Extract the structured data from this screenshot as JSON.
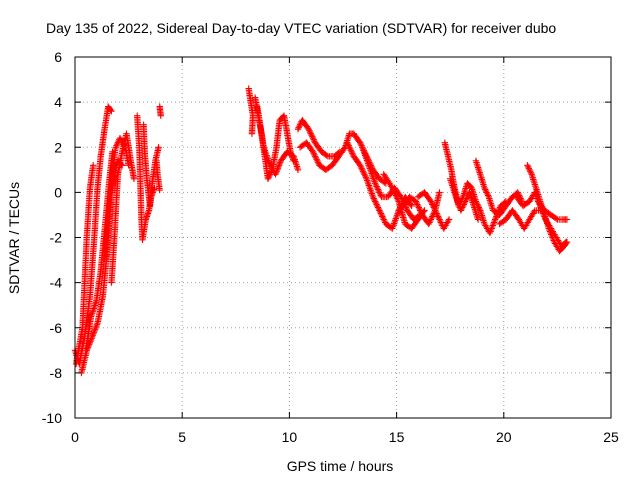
{
  "chart_data": {
    "type": "scatter",
    "title": "Day 135 of 2022, Sidereal Day-to-day VTEC variation (SDTVAR) for receiver dubo",
    "xlabel": "GPS time / hours",
    "ylabel": "SDTVAR / TECUs",
    "xlim": [
      0,
      25
    ],
    "ylim": [
      -10,
      6
    ],
    "xticks": [
      0,
      5,
      10,
      15,
      20,
      25
    ],
    "yticks": [
      -10,
      -8,
      -6,
      -4,
      -2,
      0,
      2,
      4,
      6
    ],
    "grid": true,
    "marker": "+",
    "series_color": "#ff0000",
    "tracks": [
      [
        [
          0.0,
          -7.0
        ],
        [
          0.2,
          -7.6
        ],
        [
          0.45,
          -6.4
        ],
        [
          0.7,
          -4.6
        ],
        [
          0.9,
          -2.0
        ],
        [
          1.05,
          0.2
        ],
        [
          1.2,
          1.6
        ],
        [
          1.38,
          2.8
        ],
        [
          1.55,
          3.8
        ],
        [
          1.7,
          3.6
        ]
      ],
      [
        [
          0.05,
          -7.6
        ],
        [
          0.35,
          -6.0
        ],
        [
          0.55,
          -2.0
        ],
        [
          0.7,
          0.2
        ],
        [
          0.85,
          1.2
        ]
      ],
      [
        [
          0.3,
          -8.0
        ],
        [
          0.55,
          -7.0
        ],
        [
          0.8,
          -6.4
        ],
        [
          1.05,
          -5.8
        ],
        [
          1.3,
          -4.6
        ],
        [
          1.5,
          -2.6
        ],
        [
          1.65,
          -0.6
        ],
        [
          1.8,
          0.6
        ],
        [
          2.0,
          1.4
        ],
        [
          2.2,
          1.2
        ]
      ],
      [
        [
          0.5,
          -7.0
        ],
        [
          0.75,
          -5.5
        ],
        [
          1.0,
          -4.8
        ],
        [
          1.2,
          -3.5
        ],
        [
          1.4,
          -1.5
        ],
        [
          1.6,
          0.5
        ],
        [
          1.75,
          1.8
        ]
      ],
      [
        [
          1.45,
          -3.0
        ],
        [
          1.6,
          -1.0
        ],
        [
          1.75,
          1.0
        ],
        [
          1.9,
          2.0
        ],
        [
          2.1,
          2.4
        ],
        [
          2.35,
          2.0
        ],
        [
          2.5,
          1.2
        ]
      ],
      [
        [
          1.7,
          -4.0
        ],
        [
          1.85,
          -1.8
        ],
        [
          2.0,
          0.8
        ],
        [
          2.2,
          1.8
        ],
        [
          2.4,
          2.6
        ],
        [
          2.6,
          1.4
        ],
        [
          2.75,
          0.6
        ]
      ],
      [
        [
          2.9,
          3.4
        ],
        [
          3.0,
          2.0
        ],
        [
          3.05,
          0.4
        ],
        [
          3.1,
          -1.2
        ],
        [
          3.15,
          -2.1
        ],
        [
          3.3,
          -1.2
        ],
        [
          3.45,
          -0.8
        ],
        [
          3.55,
          -0.2
        ],
        [
          3.7,
          0.2
        ]
      ],
      [
        [
          3.2,
          3.0
        ],
        [
          3.25,
          1.8
        ],
        [
          3.35,
          0.6
        ],
        [
          3.5,
          -0.6
        ],
        [
          3.6,
          0.4
        ],
        [
          3.75,
          1.4
        ],
        [
          3.9,
          2.0
        ]
      ],
      [
        [
          3.8,
          1.4
        ],
        [
          3.85,
          0.8
        ],
        [
          3.95,
          0.1
        ]
      ],
      [
        [
          3.95,
          3.8
        ],
        [
          4.0,
          3.4
        ]
      ],
      [
        [
          8.1,
          4.6
        ],
        [
          8.2,
          4.0
        ],
        [
          8.3,
          3.4
        ],
        [
          8.25,
          2.6
        ]
      ],
      [
        [
          8.4,
          4.2
        ],
        [
          8.55,
          3.4
        ],
        [
          8.7,
          2.6
        ],
        [
          8.85,
          1.6
        ],
        [
          9.0,
          0.6
        ],
        [
          9.2,
          1.0
        ],
        [
          9.4,
          2.0
        ],
        [
          9.55,
          3.2
        ],
        [
          9.75,
          3.4
        ],
        [
          9.9,
          2.6
        ],
        [
          10.05,
          1.8
        ],
        [
          10.2,
          1.4
        ]
      ],
      [
        [
          8.5,
          3.8
        ],
        [
          8.8,
          2.0
        ],
        [
          9.1,
          1.2
        ],
        [
          9.35,
          0.8
        ],
        [
          9.6,
          1.4
        ],
        [
          9.9,
          1.8
        ],
        [
          10.2,
          1.6
        ],
        [
          10.4,
          1.0
        ]
      ],
      [
        [
          10.4,
          2.8
        ],
        [
          10.6,
          3.2
        ],
        [
          10.9,
          2.8
        ],
        [
          11.2,
          2.2
        ],
        [
          11.5,
          1.8
        ],
        [
          11.8,
          1.6
        ],
        [
          12.1,
          1.6
        ],
        [
          12.35,
          1.8
        ]
      ],
      [
        [
          10.5,
          2.0
        ],
        [
          10.8,
          2.2
        ],
        [
          11.1,
          1.8
        ],
        [
          11.4,
          1.2
        ],
        [
          11.7,
          1.0
        ],
        [
          12.0,
          1.2
        ],
        [
          12.3,
          1.6
        ],
        [
          12.6,
          2.0
        ],
        [
          12.8,
          2.6
        ],
        [
          13.0,
          2.6
        ],
        [
          13.3,
          2.2
        ],
        [
          13.6,
          1.6
        ],
        [
          13.9,
          1.0
        ],
        [
          14.2,
          0.6
        ],
        [
          14.5,
          0.4
        ]
      ],
      [
        [
          12.7,
          2.2
        ],
        [
          13.0,
          1.6
        ],
        [
          13.3,
          1.2
        ],
        [
          13.6,
          0.6
        ],
        [
          13.9,
          -0.2
        ],
        [
          14.2,
          -0.8
        ],
        [
          14.5,
          -1.4
        ],
        [
          14.8,
          -1.6
        ],
        [
          15.1,
          -0.8
        ],
        [
          15.4,
          -0.2
        ],
        [
          15.7,
          -0.6
        ]
      ],
      [
        [
          13.4,
          2.0
        ],
        [
          13.7,
          1.2
        ],
        [
          14.0,
          0.4
        ],
        [
          14.3,
          -0.2
        ],
        [
          14.6,
          -0.2
        ],
        [
          14.9,
          0.2
        ],
        [
          15.2,
          -0.2
        ],
        [
          15.5,
          -0.8
        ],
        [
          15.8,
          -1.2
        ],
        [
          16.1,
          -1.0
        ]
      ],
      [
        [
          14.4,
          0.8
        ],
        [
          14.8,
          0.2
        ],
        [
          15.1,
          -0.4
        ],
        [
          15.4,
          -1.4
        ],
        [
          15.7,
          -1.6
        ],
        [
          16.0,
          -1.2
        ],
        [
          16.3,
          -0.8
        ]
      ],
      [
        [
          15.3,
          -0.6
        ],
        [
          15.6,
          -0.2
        ],
        [
          15.9,
          -0.4
        ],
        [
          16.2,
          -1.0
        ],
        [
          16.5,
          -1.4
        ],
        [
          16.8,
          -0.8
        ],
        [
          17.0,
          0.0
        ]
      ],
      [
        [
          16.0,
          -0.2
        ],
        [
          16.3,
          0.0
        ],
        [
          16.6,
          -0.4
        ],
        [
          16.9,
          -1.0
        ],
        [
          17.2,
          -1.6
        ],
        [
          17.45,
          -1.2
        ]
      ],
      [
        [
          17.25,
          2.2
        ],
        [
          17.4,
          1.6
        ],
        [
          17.55,
          1.0
        ],
        [
          17.7,
          0.2
        ],
        [
          17.85,
          -0.4
        ],
        [
          18.0,
          -0.8
        ],
        [
          18.2,
          -0.4
        ],
        [
          18.4,
          0.0
        ],
        [
          18.6,
          -0.6
        ],
        [
          18.8,
          -1.2
        ]
      ],
      [
        [
          17.5,
          0.6
        ],
        [
          17.7,
          0.0
        ],
        [
          17.9,
          -0.6
        ],
        [
          18.1,
          -0.2
        ],
        [
          18.3,
          0.4
        ],
        [
          18.5,
          0.2
        ],
        [
          18.7,
          -0.4
        ],
        [
          18.9,
          -0.8
        ],
        [
          19.1,
          -1.4
        ],
        [
          19.35,
          -1.8
        ],
        [
          19.6,
          -1.2
        ],
        [
          19.85,
          -0.6
        ],
        [
          20.1,
          -0.4
        ]
      ],
      [
        [
          18.7,
          1.4
        ],
        [
          18.9,
          0.8
        ],
        [
          19.1,
          0.2
        ],
        [
          19.3,
          -0.2
        ],
        [
          19.5,
          -0.8
        ],
        [
          19.8,
          -1.0
        ],
        [
          20.1,
          -0.6
        ],
        [
          20.4,
          -0.2
        ],
        [
          20.65,
          0.0
        ],
        [
          20.85,
          -0.4
        ]
      ],
      [
        [
          19.8,
          -1.4
        ],
        [
          20.1,
          -1.2
        ],
        [
          20.4,
          -0.8
        ],
        [
          20.7,
          -1.2
        ],
        [
          20.95,
          -1.6
        ],
        [
          21.2,
          -1.2
        ],
        [
          21.45,
          -0.8
        ],
        [
          21.7,
          -0.8
        ]
      ],
      [
        [
          20.6,
          -0.2
        ],
        [
          20.9,
          -0.6
        ],
        [
          21.2,
          -0.4
        ],
        [
          21.45,
          0.0
        ],
        [
          21.7,
          -0.6
        ],
        [
          21.95,
          -1.2
        ],
        [
          22.2,
          -1.6
        ],
        [
          22.45,
          -2.0
        ],
        [
          22.7,
          -2.4
        ],
        [
          22.9,
          -2.2
        ]
      ],
      [
        [
          21.1,
          1.2
        ],
        [
          21.3,
          0.8
        ],
        [
          21.5,
          0.2
        ],
        [
          21.7,
          -0.4
        ],
        [
          21.9,
          -1.0
        ],
        [
          22.1,
          -1.6
        ],
        [
          22.35,
          -2.2
        ],
        [
          22.6,
          -2.6
        ],
        [
          22.8,
          -2.4
        ],
        [
          22.95,
          -2.2
        ]
      ],
      [
        [
          21.6,
          -0.4
        ],
        [
          21.9,
          -0.8
        ],
        [
          22.2,
          -1.0
        ],
        [
          22.5,
          -1.2
        ],
        [
          22.75,
          -1.2
        ],
        [
          22.95,
          -1.2
        ]
      ]
    ]
  }
}
